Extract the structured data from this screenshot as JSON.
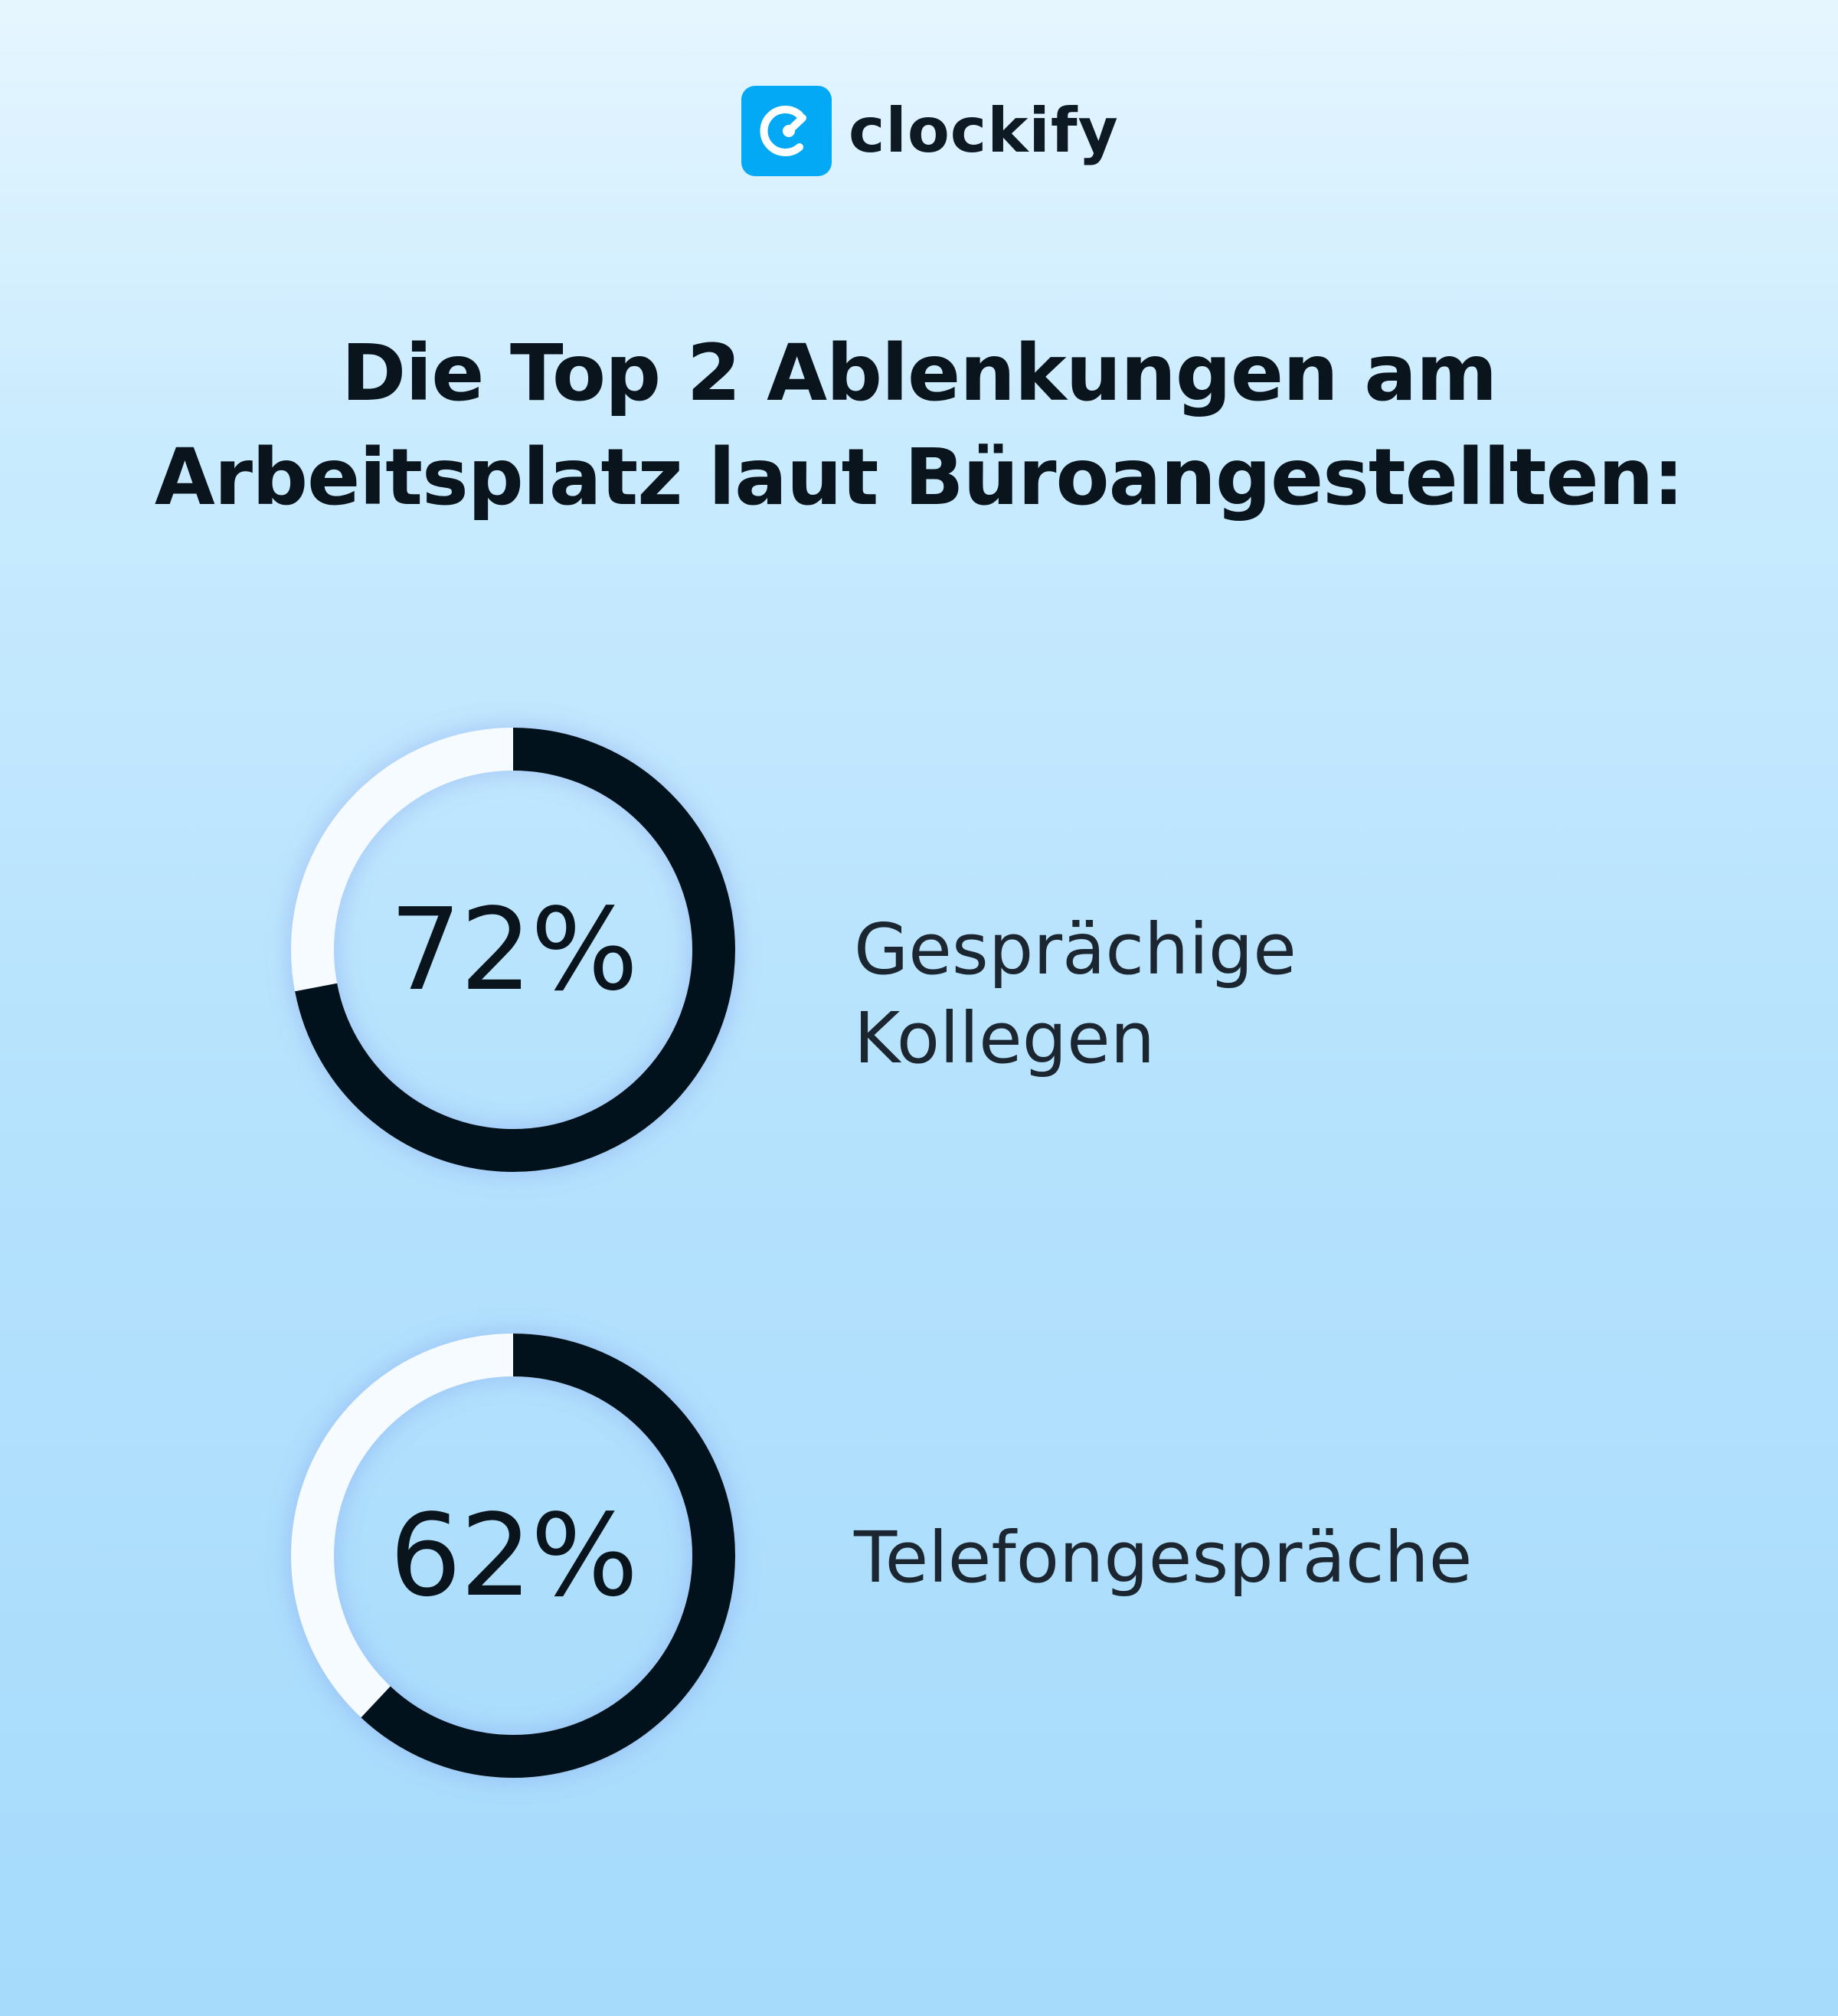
{
  "brand": {
    "name": "clockify",
    "icon": "clockify-logo-icon",
    "color": "#03a9f4"
  },
  "chart_data": {
    "type": "pie",
    "title_lines": [
      "Die Top 2 Ablenkungen am",
      "Arbeitsplatz laut Büroangestellten:"
    ],
    "unit": "%",
    "series": [
      {
        "value": 72,
        "display": "72%",
        "label_lines": [
          "Gesprächige",
          "Kollegen"
        ]
      },
      {
        "value": 62,
        "display": "62%",
        "label_lines": [
          "Telefongespräche"
        ]
      }
    ],
    "colors": {
      "filled": "#02121d",
      "remainder": "#f6fbff"
    }
  }
}
